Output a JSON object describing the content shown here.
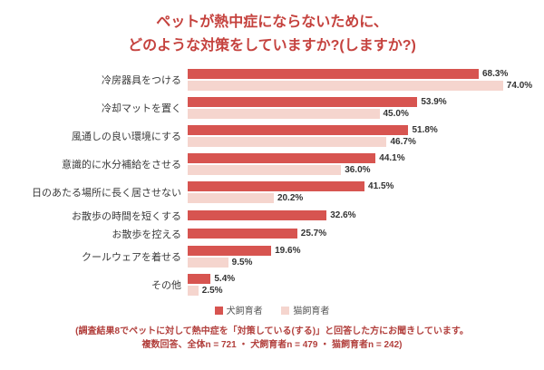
{
  "title": {
    "line1": "ペットが熱中症にならないために、",
    "line2": "どのような対策をしていますか?(しますか?)"
  },
  "chart_data": {
    "type": "bar",
    "orientation": "horizontal",
    "title": "ペットが熱中症にならないために、どのような対策をしていますか?(しますか?)",
    "categories": [
      "冷房器具をつける",
      "冷却マットを置く",
      "風通しの良い環境にする",
      "意識的に水分補給をさせる",
      "日のあたる場所に長く居させない",
      "お散歩の時間を短くする",
      "お散歩を控える",
      "クールウェアを着せる",
      "その他"
    ],
    "series": [
      {
        "name": "犬飼育者",
        "color": "#d75450",
        "values": [
          68.3,
          53.9,
          51.8,
          44.1,
          41.5,
          32.6,
          25.7,
          19.6,
          5.4
        ]
      },
      {
        "name": "猫飼育者",
        "color": "#f5d5ce",
        "values": [
          74.0,
          45.0,
          46.7,
          36.0,
          20.2,
          null,
          null,
          9.5,
          2.5
        ]
      }
    ],
    "value_suffix": "%",
    "xlim": [
      0,
      80
    ],
    "grid": false,
    "legend_position": "bottom"
  },
  "footer": {
    "line1": "(調査結果8でペットに対して熱中症を「対策している(する)」と回答した方にお聞きしています。",
    "line2": "複数回答、全体n = 721 ・ 犬飼育者n = 479 ・ 猫飼育者n = 242)"
  }
}
